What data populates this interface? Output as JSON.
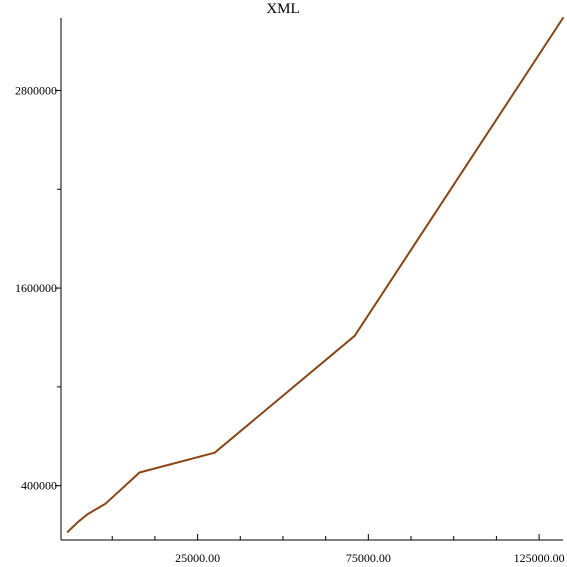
{
  "chart_data": {
    "type": "line",
    "title": "XML",
    "xlabel": "",
    "ylabel": "",
    "xlim": [
      -15000,
      132000
    ],
    "ylim": [
      70000,
      3240000
    ],
    "x_major_ticks": [
      25000,
      75000,
      125000
    ],
    "x_minor_ticks": [
      0,
      12500,
      37500,
      50000,
      62500,
      87500,
      100000,
      112500
    ],
    "x_tick_labels": [
      "25000.00",
      "75000.00",
      "125000.00"
    ],
    "y_major_ticks": [
      400000,
      1600000,
      2800000
    ],
    "y_minor_ticks": [
      1000000,
      2200000
    ],
    "y_tick_labels": [
      "400000",
      "1600000",
      "2800000"
    ],
    "grid": false,
    "legend": "none",
    "series": [
      {
        "color": "#8b4513",
        "x": [
          -13000,
          -10000,
          -7000,
          -2000,
          8000,
          30000,
          71000,
          132000
        ],
        "y": [
          120000,
          180000,
          230000,
          290000,
          480000,
          600000,
          1310000,
          3240000
        ]
      }
    ]
  }
}
